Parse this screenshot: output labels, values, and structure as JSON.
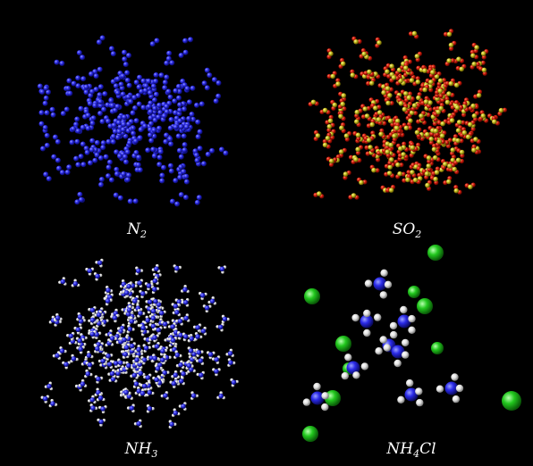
{
  "panels": [
    {
      "id": "n2",
      "label_main": "N",
      "label_sub": "2",
      "label_tail": "",
      "atom_colors": [
        "#2a2ae8"
      ]
    },
    {
      "id": "so2",
      "label_main": "SO",
      "label_sub": "2",
      "label_tail": "",
      "atom_colors": [
        "#d21a0a",
        "#c8c020"
      ]
    },
    {
      "id": "nh3",
      "label_main": "NH",
      "label_sub": "3",
      "label_tail": "",
      "atom_colors": [
        "#2a2ae8",
        "#e8e8e8"
      ]
    },
    {
      "id": "nh4cl",
      "label_main": "NH",
      "label_sub": "4",
      "label_tail": "Cl",
      "atom_colors": [
        "#1f2ae0",
        "#f0f0f0",
        "#22c81e"
      ]
    }
  ],
  "background_color": "#000000"
}
